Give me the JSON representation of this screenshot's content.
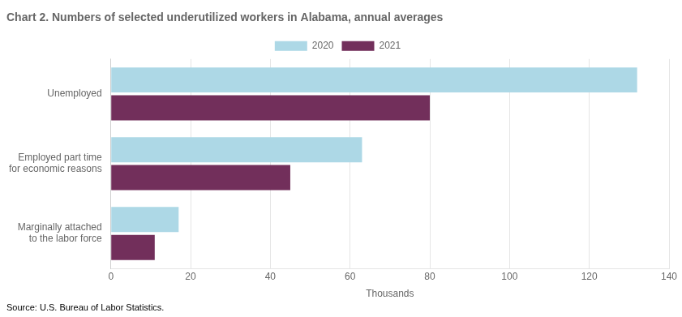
{
  "chart_data": {
    "type": "bar",
    "orientation": "horizontal",
    "title": "Chart 2. Numbers of selected underutilized workers in Alabama, annual averages",
    "categories": [
      "Unemployed",
      "Employed part time\nfor economic reasons",
      "Marginally attached\nto the labor force"
    ],
    "series": [
      {
        "name": "2020",
        "color": "#add8e6",
        "values": [
          132,
          63,
          17
        ]
      },
      {
        "name": "2021",
        "color": "#722F5B",
        "values": [
          80,
          45,
          11
        ]
      }
    ],
    "xlabel": "Thousands",
    "xlim": [
      0,
      140
    ],
    "xticks": [
      0,
      20,
      40,
      60,
      80,
      100,
      120,
      140
    ],
    "grid": "x",
    "legend": "top",
    "annotations": [
      "Source: U.S. Bureau of Labor Statistics."
    ]
  }
}
